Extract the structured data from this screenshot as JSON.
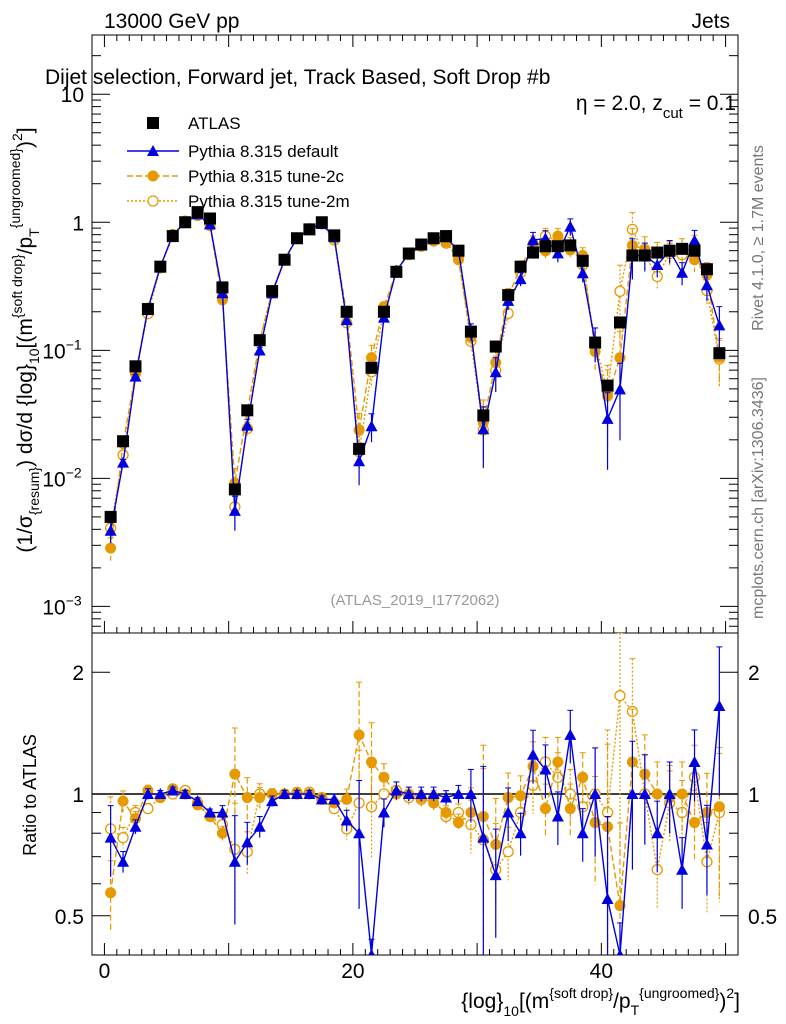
{
  "header": {
    "left": "13000 GeV pp",
    "right": "Jets"
  },
  "side_labels": {
    "rivet": "Rivet 4.1.0, ≥ 1.7M events",
    "mcplots": "mcplots.cern.ch [arXiv:1306.3436]"
  },
  "chart_data": {
    "type": "line",
    "title": "Dijet selection, Forward jet, Track Based, Soft Drop #b",
    "title_tail": "η = 2.0, z",
    "title_sub": "cut",
    "title_end": " = 0.1",
    "analysis_id": "(ATLAS_2019_I1772062)",
    "xlabel": "{log}_10[(m^{soft drop}/p_T^{ungroomed})^2]",
    "xlabel_parts": {
      "a": "{log}",
      "b": "10",
      "c": "[(m",
      "d": "{soft drop}",
      "e": "/p",
      "f": "T",
      "g": "{ungroomed}",
      "h": ")",
      "i": "2",
      "j": "]"
    },
    "ylabel_parts": {
      "a": "(1/σ",
      "b": "{resum}",
      "c": ") dσ/d {log}",
      "d": "10",
      "e": "[(m",
      "f": "{soft drop}",
      "g": "/p",
      "h": "T",
      "i": "{ungroomed}",
      "j": ")",
      "k": "2",
      "l": "]"
    },
    "ratio_ylabel": "Ratio to ATLAS",
    "xlim": [
      -1,
      51
    ],
    "ylim": [
      0.00062,
      29
    ],
    "yscale": "log",
    "ratio_ylim": [
      0.4,
      2.5
    ],
    "x_ticks": [
      "0",
      "20",
      "40"
    ],
    "x_tick_values": [
      0,
      20,
      40
    ],
    "y_ticks": [
      {
        "v": 10,
        "label": "10"
      },
      {
        "v": 1,
        "label": "1"
      },
      {
        "v": 0.1,
        "label": "10",
        "exp": "−1"
      },
      {
        "v": 0.01,
        "label": "10",
        "exp": "−2"
      },
      {
        "v": 0.001,
        "label": "10",
        "exp": "−3"
      }
    ],
    "ratio_ticks": [
      {
        "v": 2,
        "label": "2"
      },
      {
        "v": 1,
        "label": "1"
      },
      {
        "v": 0.5,
        "label": "0.5"
      }
    ],
    "x": [
      0.5,
      1.5,
      2.5,
      3.5,
      4.5,
      5.5,
      6.5,
      7.5,
      8.5,
      9.5,
      10.5,
      11.5,
      12.5,
      13.5,
      14.5,
      15.5,
      16.5,
      17.5,
      18.5,
      19.5,
      20.5,
      21.5,
      22.5,
      23.5,
      24.5,
      25.5,
      26.5,
      27.5,
      28.5,
      29.5,
      30.5,
      31.5,
      32.5,
      33.5,
      34.5,
      35.5,
      36.5,
      37.5,
      38.5,
      39.5,
      40.5,
      41.5,
      42.5,
      43.5,
      44.5,
      45.5,
      46.5,
      47.5,
      48.5,
      49.5
    ],
    "data": {
      "name": "ATLAS",
      "values": [
        0.005,
        0.0195,
        0.075,
        0.21,
        0.45,
        0.78,
        1.0,
        1.2,
        1.07,
        0.31,
        0.0082,
        0.034,
        0.12,
        0.29,
        0.51,
        0.75,
        0.88,
        1.0,
        0.79,
        0.2,
        0.017,
        0.073,
        0.2,
        0.41,
        0.57,
        0.67,
        0.75,
        0.78,
        0.6,
        0.14,
        0.031,
        0.107,
        0.27,
        0.45,
        0.58,
        0.65,
        0.65,
        0.66,
        0.5,
        0.115,
        0.053,
        0.165,
        0.55,
        0.55,
        0.58,
        0.6,
        0.62,
        0.6,
        0.43,
        0.095
      ]
    },
    "mc_rel_err": [
      0.2,
      0.06,
      0.04,
      0.03,
      0.02,
      0.02,
      0.02,
      0.02,
      0.02,
      0.04,
      0.3,
      0.12,
      0.06,
      0.03,
      0.02,
      0.02,
      0.02,
      0.02,
      0.03,
      0.06,
      0.35,
      0.25,
      0.08,
      0.05,
      0.04,
      0.04,
      0.04,
      0.04,
      0.05,
      0.15,
      0.5,
      0.3,
      0.15,
      0.12,
      0.15,
      0.15,
      0.15,
      0.15,
      0.15,
      0.3,
      0.6,
      0.6,
      0.35,
      0.25,
      0.2,
      0.2,
      0.2,
      0.2,
      0.25,
      0.4
    ],
    "series": [
      {
        "name": "Pythia 8.315 default",
        "color": "#0000e0",
        "style": "solid",
        "marker": "triangle",
        "ratio": [
          0.78,
          0.68,
          0.83,
          1.0,
          1.0,
          1.02,
          1.0,
          0.96,
          0.9,
          0.9,
          0.68,
          0.76,
          0.83,
          0.96,
          1.0,
          1.0,
          1.0,
          0.97,
          0.97,
          0.86,
          0.8,
          0.35,
          0.9,
          1.02,
          1.0,
          1.0,
          1.0,
          0.98,
          1.0,
          1.0,
          0.78,
          0.63,
          0.9,
          0.8,
          1.25,
          1.15,
          0.88,
          1.4,
          0.8,
          1.0,
          0.55,
          0.3,
          1.0,
          1.0,
          0.8,
          1.0,
          0.65,
          1.2,
          0.75,
          1.65
        ]
      },
      {
        "name": "Pythia 8.315 tune-2c",
        "color": "#e69a00",
        "style": "dashed",
        "marker": "circle",
        "ratio": [
          0.57,
          0.96,
          0.87,
          1.02,
          0.98,
          1.03,
          1.0,
          0.94,
          0.88,
          0.8,
          1.12,
          0.98,
          0.98,
          1.0,
          1.0,
          1.01,
          1.0,
          0.98,
          0.95,
          0.97,
          1.4,
          1.2,
          1.1,
          1.0,
          1.0,
          0.98,
          0.95,
          0.9,
          0.85,
          0.9,
          0.88,
          0.75,
          0.98,
          0.99,
          1.17,
          0.92,
          1.2,
          0.92,
          1.1,
          0.85,
          0.83,
          0.53,
          1.2,
          1.12,
          1.0,
          0.98,
          1.0,
          0.85,
          0.9,
          0.93
        ]
      },
      {
        "name": "Pythia 8.315 tune-2m",
        "color": "#e69a00",
        "style": "dotted",
        "marker": "open-circle",
        "ratio": [
          0.82,
          0.78,
          0.9,
          0.92,
          0.98,
          1.0,
          1.02,
          0.95,
          0.88,
          0.84,
          0.73,
          0.72,
          1.0,
          1.0,
          1.0,
          1.0,
          1.01,
          0.97,
          0.92,
          0.82,
          0.95,
          0.93,
          1.0,
          1.02,
          0.98,
          0.97,
          0.98,
          0.88,
          0.9,
          0.84,
          0.77,
          0.65,
          0.72,
          0.9,
          1.05,
          1.2,
          1.1,
          1.0,
          0.93,
          1.0,
          0.9,
          1.75,
          1.6,
          1.0,
          0.65,
          0.95,
          0.9,
          1.1,
          0.68,
          0.9
        ]
      }
    ],
    "legend": "top-left",
    "grid": false
  }
}
